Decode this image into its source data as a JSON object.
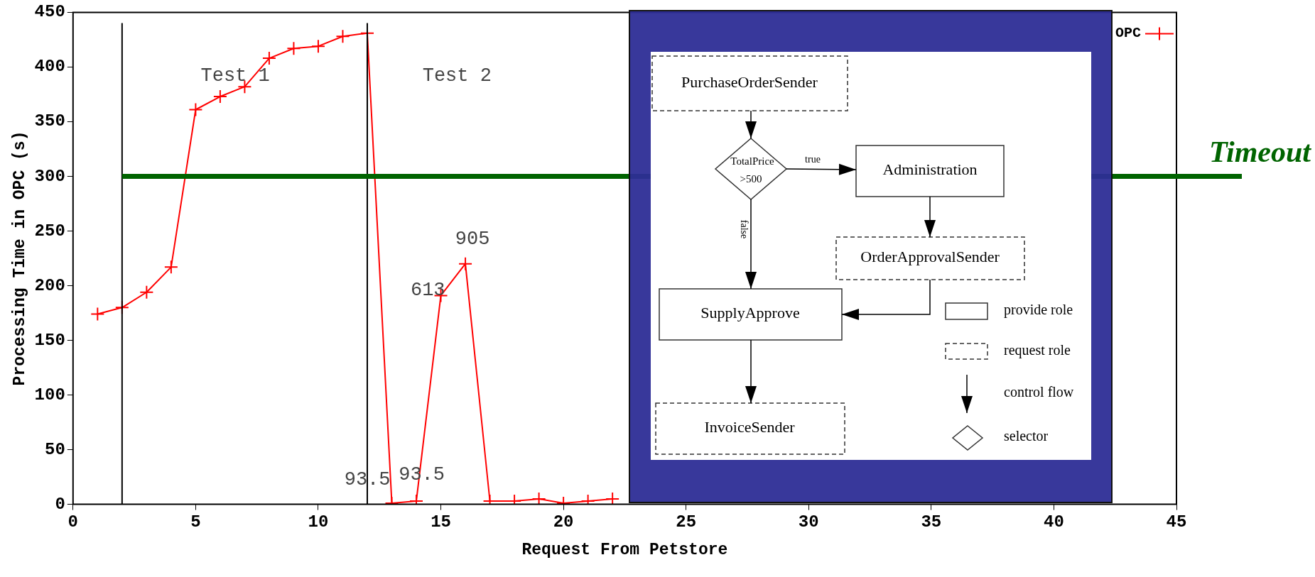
{
  "chart_data": {
    "type": "line",
    "xlabel": "Request From Petstore",
    "ylabel": "Processing Time in OPC (s)",
    "x": [
      1,
      2,
      3,
      4,
      5,
      6,
      7,
      8,
      9,
      10,
      11,
      12,
      13,
      14,
      15,
      16,
      17,
      18,
      19,
      20,
      21,
      22
    ],
    "series": [
      {
        "name": "OPC",
        "color": "#ff0000",
        "values": [
          174,
          180,
          194,
          217,
          361,
          373,
          382,
          408,
          417,
          419,
          428,
          431,
          1,
          3,
          191,
          220,
          3,
          3,
          5,
          1,
          3,
          5
        ]
      }
    ],
    "xlim": [
      0,
      45
    ],
    "xticks": [
      0,
      5,
      10,
      15,
      20,
      25,
      30,
      35,
      40,
      45
    ],
    "ylim": [
      0,
      450
    ],
    "yticks": [
      0,
      50,
      100,
      150,
      200,
      250,
      300,
      350,
      400,
      450
    ],
    "grid": false,
    "legend": "top right",
    "marker": "cross",
    "line_style": "solid",
    "ref_lines": [
      {
        "axis": "x",
        "value": 2,
        "color": "#000000"
      },
      {
        "axis": "x",
        "value": 12,
        "color": "#000000"
      },
      {
        "axis": "y",
        "value": 300,
        "label": "Timeout",
        "color": "#006400"
      }
    ],
    "annotations": [
      "Test 1",
      "Test 2",
      {
        "text": "93.5",
        "x": 13,
        "y": 1
      },
      {
        "text": "93.5",
        "x": 14,
        "y": 3
      },
      {
        "text": "613",
        "x": 15,
        "y": 191
      },
      {
        "text": "905",
        "x": 16,
        "y": 220
      },
      "PurchaseOrderSender",
      "TotalPrice",
      ">500",
      "true",
      "Administration",
      "false",
      "OrderApprovalSender",
      "SupplyApprove",
      "InvoiceSender",
      "provide role",
      "request role",
      "control flow",
      "selector"
    ]
  }
}
